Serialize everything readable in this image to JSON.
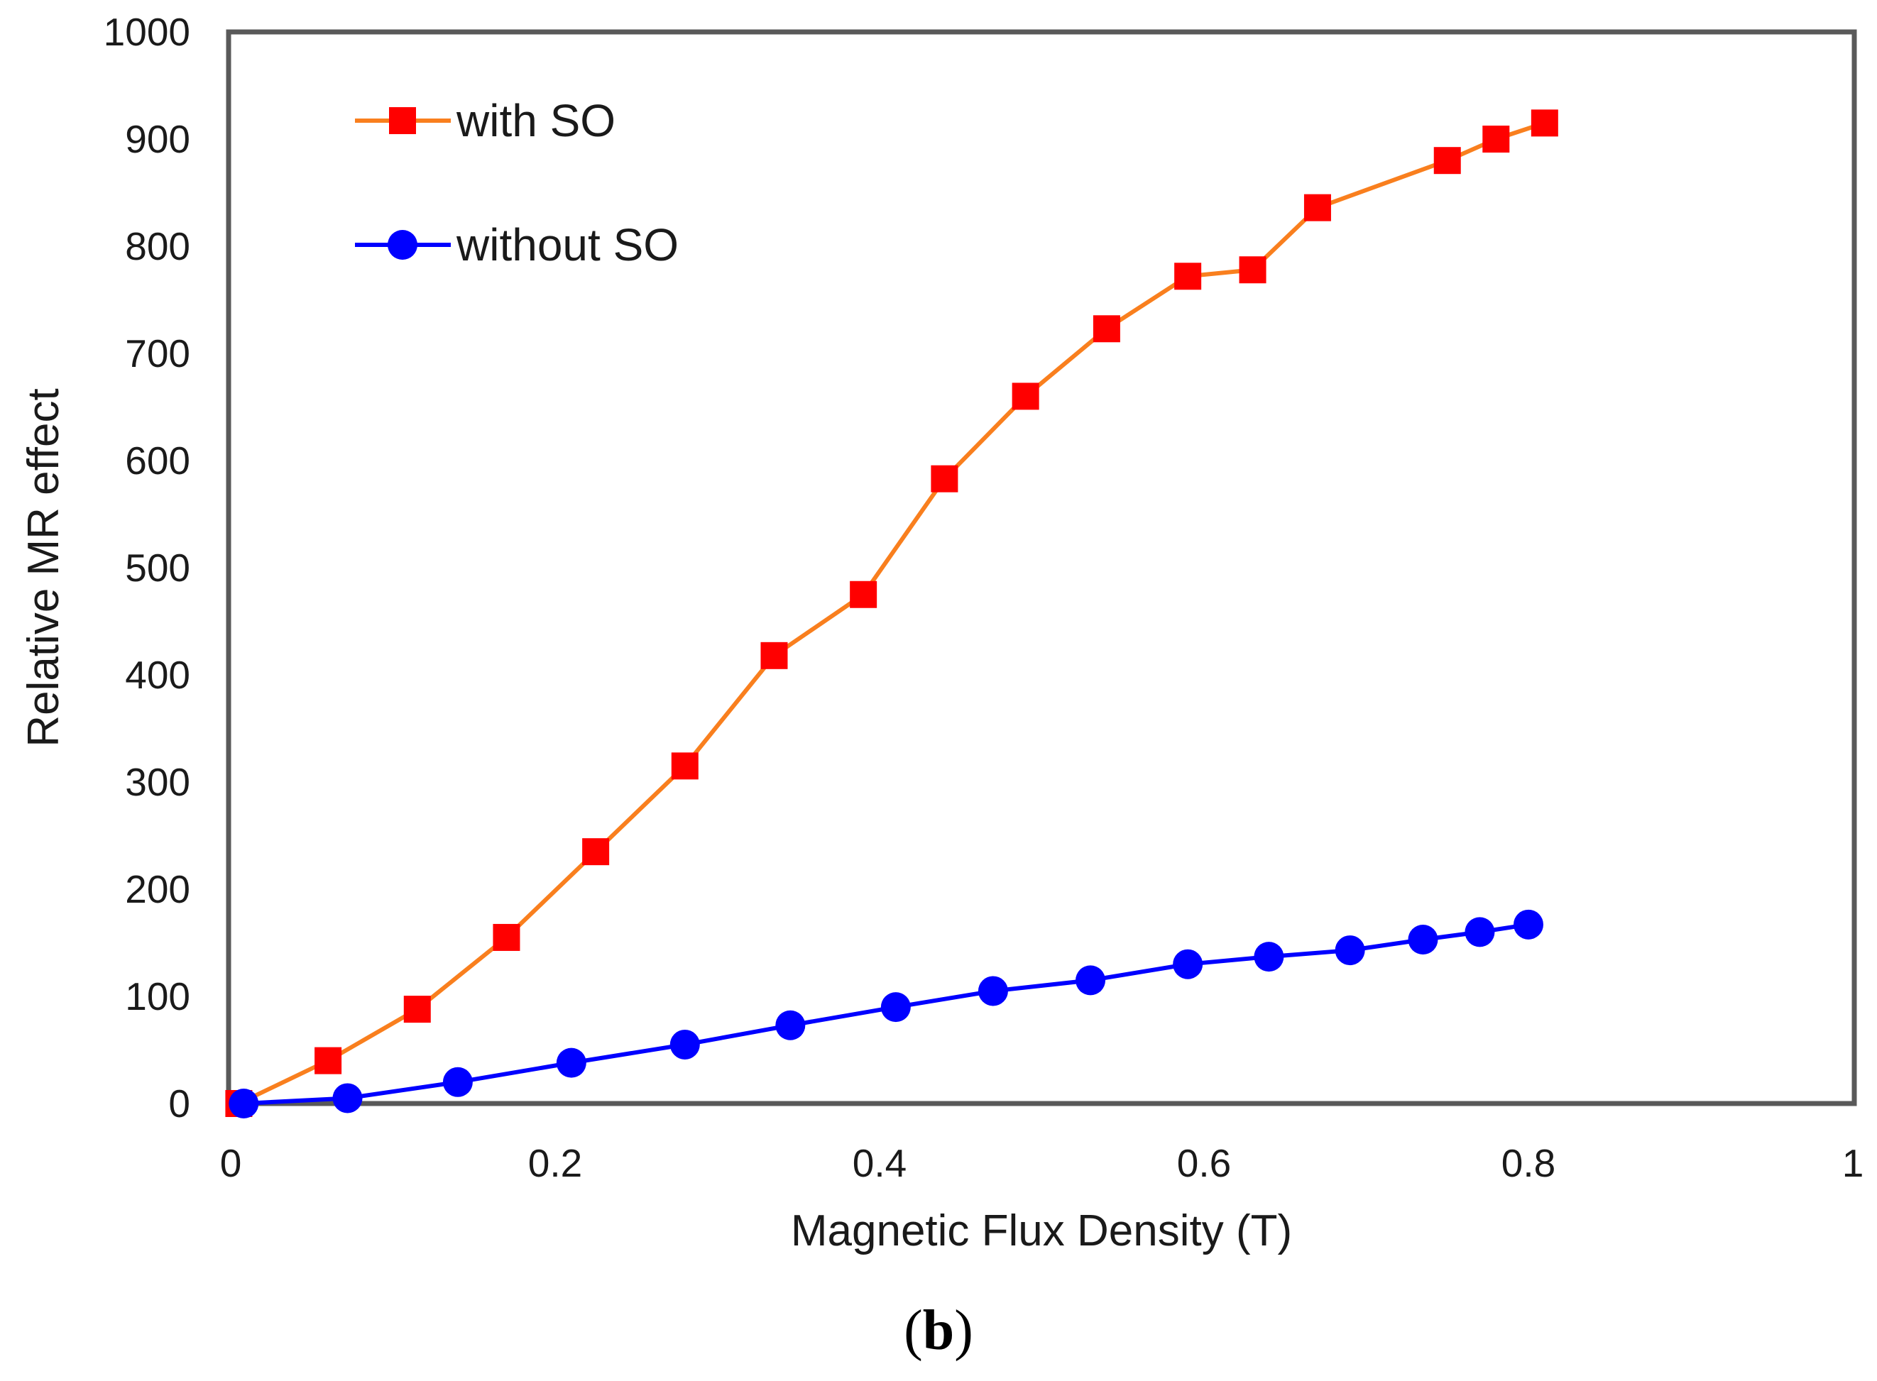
{
  "chart_data": {
    "type": "line",
    "title": "",
    "xlabel": "Magnetic Flux Density (T)",
    "ylabel": "Relative MR effect",
    "xlim": [
      0,
      1
    ],
    "ylim": [
      0,
      1000
    ],
    "xticks": [
      0,
      0.2,
      0.4,
      0.6,
      0.8,
      1
    ],
    "xtick_labels": [
      "0",
      "0.2",
      "0.4",
      "0.6",
      "0.8",
      "1"
    ],
    "yticks": [
      0,
      100,
      200,
      300,
      400,
      500,
      600,
      700,
      800,
      900,
      1000
    ],
    "ytick_labels": [
      "0",
      "100",
      "200",
      "300",
      "400",
      "500",
      "600",
      "700",
      "800",
      "900",
      "1000"
    ],
    "grid": false,
    "legend_position": "top-left",
    "series": [
      {
        "name": "with SO",
        "line_color": "#F97F1E",
        "marker_color": "#FF0000",
        "marker": "square",
        "x": [
          0.005,
          0.06,
          0.115,
          0.17,
          0.225,
          0.28,
          0.335,
          0.39,
          0.44,
          0.49,
          0.54,
          0.59,
          0.63,
          0.67,
          0.75,
          0.78,
          0.81
        ],
        "y": [
          0,
          40,
          88,
          155,
          235,
          315,
          418,
          475,
          583,
          660,
          723,
          772,
          778,
          836,
          880,
          900,
          915
        ]
      },
      {
        "name": "without SO",
        "line_color": "#0000FF",
        "marker_color": "#0000FF",
        "marker": "circle",
        "x": [
          0.008,
          0.072,
          0.14,
          0.21,
          0.28,
          0.345,
          0.41,
          0.47,
          0.53,
          0.59,
          0.64,
          0.69,
          0.735,
          0.77,
          0.8
        ],
        "y": [
          0,
          5,
          20,
          38,
          55,
          73,
          90,
          105,
          115,
          130,
          137,
          143,
          153,
          160,
          167
        ]
      }
    ]
  },
  "caption": {
    "open": "(",
    "letter": "b",
    "close": ")"
  }
}
